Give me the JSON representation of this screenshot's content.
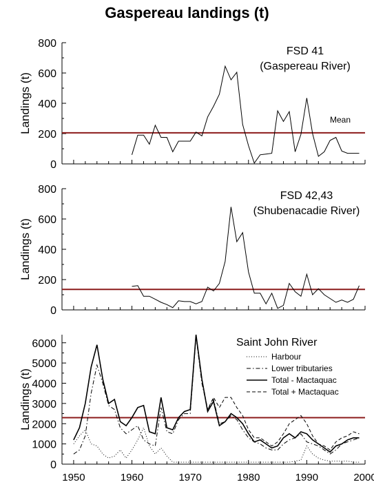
{
  "title": "Gaspereau landings (t)",
  "colors": {
    "mean_line": "#8B1A1A",
    "series": "#000000"
  },
  "chart_data": [
    {
      "type": "line",
      "title": "FSD 41",
      "subtitle": "(Gaspereau River)",
      "ylabel": "Landings (t)",
      "ylim": [
        0,
        800
      ],
      "yticks": [
        0,
        200,
        400,
        600,
        800
      ],
      "xlim": [
        1948,
        2000
      ],
      "grid": false,
      "mean": {
        "label": "Mean",
        "value": 205
      },
      "series": [
        {
          "x": [
            1960,
            1961,
            1962,
            1963,
            1964,
            1965,
            1966,
            1967,
            1968,
            1969,
            1970,
            1971,
            1972,
            1973,
            1974,
            1975,
            1976,
            1977,
            1978,
            1979,
            1980,
            1981,
            1982,
            1983,
            1984,
            1985,
            1986,
            1987,
            1988,
            1989,
            1990,
            1991,
            1992,
            1993,
            1994,
            1995,
            1996,
            1997,
            1998,
            1999
          ],
          "values": [
            60,
            190,
            190,
            130,
            255,
            175,
            175,
            80,
            150,
            150,
            150,
            210,
            185,
            310,
            380,
            460,
            645,
            555,
            605,
            260,
            120,
            5,
            60,
            65,
            70,
            350,
            280,
            345,
            80,
            195,
            435,
            200,
            50,
            80,
            155,
            175,
            85,
            70,
            70,
            70
          ]
        }
      ]
    },
    {
      "type": "line",
      "title": "FSD 42,43",
      "subtitle": "(Shubenacadie River)",
      "ylabel": "Landings (t)",
      "ylim": [
        0,
        800
      ],
      "yticks": [
        0,
        200,
        400,
        600,
        800
      ],
      "xlim": [
        1948,
        2000
      ],
      "grid": false,
      "mean": {
        "value": 135
      },
      "series": [
        {
          "x": [
            1960,
            1961,
            1962,
            1963,
            1964,
            1965,
            1966,
            1967,
            1968,
            1969,
            1970,
            1971,
            1972,
            1973,
            1974,
            1975,
            1976,
            1977,
            1978,
            1979,
            1980,
            1981,
            1982,
            1983,
            1984,
            1985,
            1986,
            1987,
            1988,
            1989,
            1990,
            1991,
            1992,
            1993,
            1994,
            1995,
            1996,
            1997,
            1998,
            1999
          ],
          "values": [
            155,
            160,
            90,
            90,
            70,
            50,
            35,
            15,
            60,
            55,
            55,
            40,
            55,
            150,
            125,
            175,
            320,
            680,
            450,
            510,
            250,
            110,
            110,
            40,
            110,
            10,
            30,
            175,
            120,
            90,
            235,
            100,
            140,
            100,
            75,
            50,
            65,
            50,
            70,
            160
          ]
        }
      ]
    },
    {
      "type": "line",
      "title": "Saint John River",
      "ylabel": "Landings (t)",
      "ylim": [
        0,
        6400
      ],
      "yticks": [
        0,
        1000,
        2000,
        3000,
        4000,
        5000,
        6000
      ],
      "xlim": [
        1948,
        2000
      ],
      "xticks": [
        1950,
        1960,
        1970,
        1980,
        1990,
        2000
      ],
      "grid": false,
      "mean": {
        "value": 2300
      },
      "legend": {
        "placement": "top-right"
      },
      "series": [
        {
          "name": "Harbour",
          "style": "dotted",
          "x": [
            1950,
            1951,
            1952,
            1953,
            1954,
            1955,
            1956,
            1957,
            1958,
            1959,
            1960,
            1961,
            1962,
            1963,
            1964,
            1965,
            1966,
            1967,
            1968,
            1969,
            1970,
            1971,
            1972,
            1973,
            1974,
            1975,
            1976,
            1977,
            1978,
            1979,
            1980,
            1981,
            1982,
            1983,
            1984,
            1985,
            1986,
            1987,
            1988,
            1989,
            1990,
            1991,
            1992,
            1993,
            1994,
            1995,
            1996,
            1997,
            1998,
            1999
          ],
          "values": [
            1000,
            1400,
            1700,
            1000,
            900,
            500,
            300,
            400,
            700,
            300,
            700,
            1200,
            1800,
            900,
            500,
            800,
            400,
            100,
            100,
            100,
            100,
            100,
            100,
            100,
            100,
            100,
            100,
            100,
            100,
            100,
            100,
            100,
            100,
            100,
            100,
            100,
            100,
            100,
            150,
            200,
            900,
            500,
            300,
            200,
            150,
            150,
            150,
            150,
            100,
            100
          ]
        },
        {
          "name": "Lower tributaries",
          "style": "dashdot",
          "x": [
            1950,
            1951,
            1952,
            1953,
            1954,
            1955,
            1956,
            1957,
            1958,
            1959,
            1960,
            1961,
            1962,
            1963,
            1964,
            1965,
            1966,
            1967,
            1968,
            1969,
            1970,
            1971,
            1972,
            1973,
            1974,
            1975,
            1976,
            1977,
            1978,
            1979,
            1980,
            1981,
            1982,
            1983,
            1984,
            1985,
            1986,
            1987,
            1988,
            1989,
            1990,
            1991,
            1992,
            1993,
            1994,
            1995,
            1996,
            1997,
            1998,
            1999
          ],
          "values": [
            500,
            700,
            1400,
            3500,
            4900,
            4000,
            2900,
            2700,
            1800,
            1500,
            1700,
            1900,
            1200,
            1000,
            900,
            2800,
            1600,
            1500,
            2200,
            2500,
            2500,
            6300,
            4000,
            2700,
            3200,
            2000,
            2100,
            2400,
            2200,
            1700,
            1300,
            1100,
            1000,
            800,
            700,
            700,
            1000,
            1200,
            1300,
            1500,
            1100,
            1000,
            900,
            700,
            500,
            700,
            1000,
            1100,
            1200,
            1300
          ]
        },
        {
          "name": "Total - Mactaquac",
          "style": "solid",
          "x": [
            1950,
            1951,
            1952,
            1953,
            1954,
            1955,
            1956,
            1957,
            1958,
            1959,
            1960,
            1961,
            1962,
            1963,
            1964,
            1965,
            1966,
            1967,
            1968,
            1969,
            1970,
            1971,
            1972,
            1973,
            1974,
            1975,
            1976,
            1977,
            1978,
            1979,
            1980,
            1981,
            1982,
            1983,
            1984,
            1985,
            1986,
            1987,
            1988,
            1989,
            1990,
            1991,
            1992,
            1993,
            1994,
            1995,
            1996,
            1997,
            1998,
            1999
          ],
          "values": [
            1200,
            1800,
            3000,
            4800,
            5900,
            4200,
            3000,
            3200,
            2100,
            1900,
            2300,
            2800,
            2900,
            1600,
            1500,
            3300,
            1800,
            1700,
            2300,
            2600,
            2700,
            6400,
            4200,
            2600,
            3100,
            1900,
            2100,
            2500,
            2300,
            2000,
            1500,
            1100,
            1200,
            1000,
            800,
            900,
            1300,
            1500,
            1300,
            1600,
            1500,
            1200,
            1000,
            800,
            600,
            900,
            1000,
            1200,
            1300,
            1300
          ]
        },
        {
          "name": "Total + Mactaquac",
          "style": "dashed",
          "x": [
            1950,
            1951,
            1952,
            1953,
            1954,
            1955,
            1956,
            1957,
            1958,
            1959,
            1960,
            1961,
            1962,
            1963,
            1964,
            1965,
            1966,
            1967,
            1968,
            1969,
            1970,
            1971,
            1972,
            1973,
            1974,
            1975,
            1976,
            1977,
            1978,
            1979,
            1980,
            1981,
            1982,
            1983,
            1984,
            1985,
            1986,
            1987,
            1988,
            1989,
            1990,
            1991,
            1992,
            1993,
            1994,
            1995,
            1996,
            1997,
            1998,
            1999
          ],
          "values": [
            1200,
            1800,
            3000,
            4800,
            5900,
            4200,
            3000,
            3200,
            2100,
            1900,
            2300,
            2800,
            2900,
            1600,
            1500,
            3300,
            1800,
            1700,
            2300,
            2600,
            2700,
            6400,
            4200,
            2700,
            3300,
            2800,
            3300,
            3300,
            2800,
            2400,
            1700,
            1300,
            1300,
            1100,
            900,
            1100,
            1500,
            2000,
            2200,
            2400,
            2000,
            1400,
            1000,
            900,
            700,
            1100,
            1300,
            1400,
            1600,
            1500
          ]
        }
      ]
    }
  ]
}
